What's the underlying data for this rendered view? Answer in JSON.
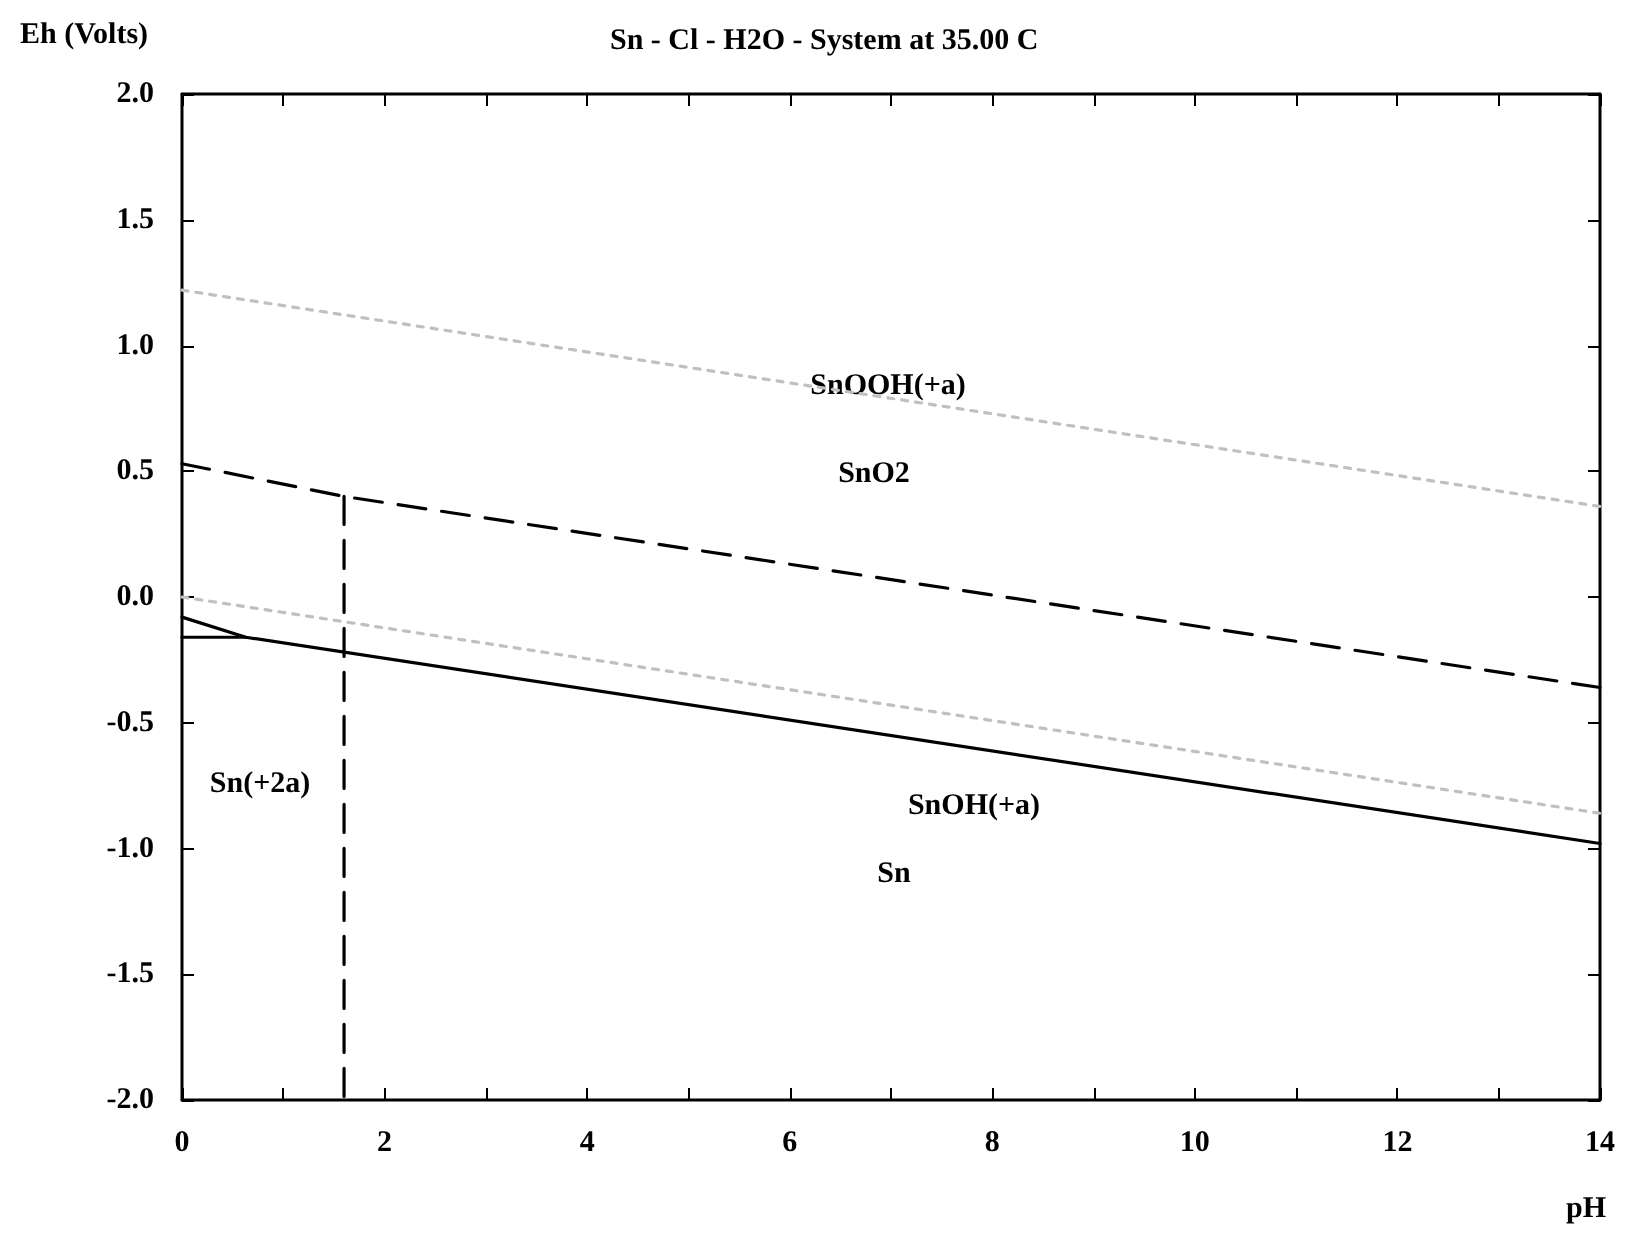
{
  "chart_data": {
    "type": "line",
    "title": "Sn - Cl - H2O - System at 35.00 C",
    "xlabel": "pH",
    "ylabel": "Eh (Volts)",
    "xlim": [
      0,
      14
    ],
    "ylim": [
      -2,
      2
    ],
    "xticks": [
      0,
      {
        "value": 1,
        "label": null
      },
      2,
      {
        "value": 3,
        "label": null
      },
      4,
      {
        "value": 5,
        "label": null
      },
      6,
      {
        "value": 7,
        "label": null
      },
      8,
      {
        "value": 9,
        "label": null
      },
      10,
      {
        "value": 11,
        "label": null
      },
      12,
      {
        "value": 13,
        "label": null
      },
      14
    ],
    "yticks": [
      {
        "value": -2,
        "label": "-2.0"
      },
      {
        "value": -1.5,
        "label": "-1.5"
      },
      {
        "value": -1,
        "label": "-1.0"
      },
      {
        "value": -0.5,
        "label": "-0.5"
      },
      {
        "value": 0,
        "label": "0.0"
      },
      {
        "value": 0.5,
        "label": "0.5"
      },
      {
        "value": 1,
        "label": "1.0"
      },
      {
        "value": 1.5,
        "label": "1.5"
      },
      {
        "value": 2,
        "label": "2.0"
      }
    ],
    "grid": false,
    "marker": "none",
    "series": [
      {
        "x": [
          0,
          14
        ],
        "values": [
          1.22,
          0.36
        ],
        "color": "#c0c0c0",
        "line_style": "dotted"
      },
      {
        "x": [
          0,
          14
        ],
        "values": [
          0.0,
          -0.86
        ],
        "color": "#c0c0c0",
        "line_style": "dotted"
      },
      {
        "x": [
          0,
          1.6,
          14
        ],
        "values": [
          0.53,
          0.4,
          -0.36
        ],
        "color": "#000000",
        "line_style": "dashed"
      },
      {
        "x": [
          1.6,
          1.6
        ],
        "values": [
          0.4,
          -2.0
        ],
        "color": "#000000",
        "line_style": "dashed"
      },
      {
        "x": [
          0,
          0.63,
          14
        ],
        "values": [
          -0.08,
          -0.16,
          -0.98
        ],
        "color": "#000000",
        "line_style": "solid"
      },
      {
        "x": [
          0,
          0.63
        ],
        "values": [
          -0.16,
          -0.16
        ],
        "color": "#000000",
        "line_style": "solid"
      }
    ],
    "annotations": [
      "SnOOH(+a)",
      "SnO2",
      "Sn(+2a)",
      "SnOH(+a)",
      "Sn"
    ]
  }
}
